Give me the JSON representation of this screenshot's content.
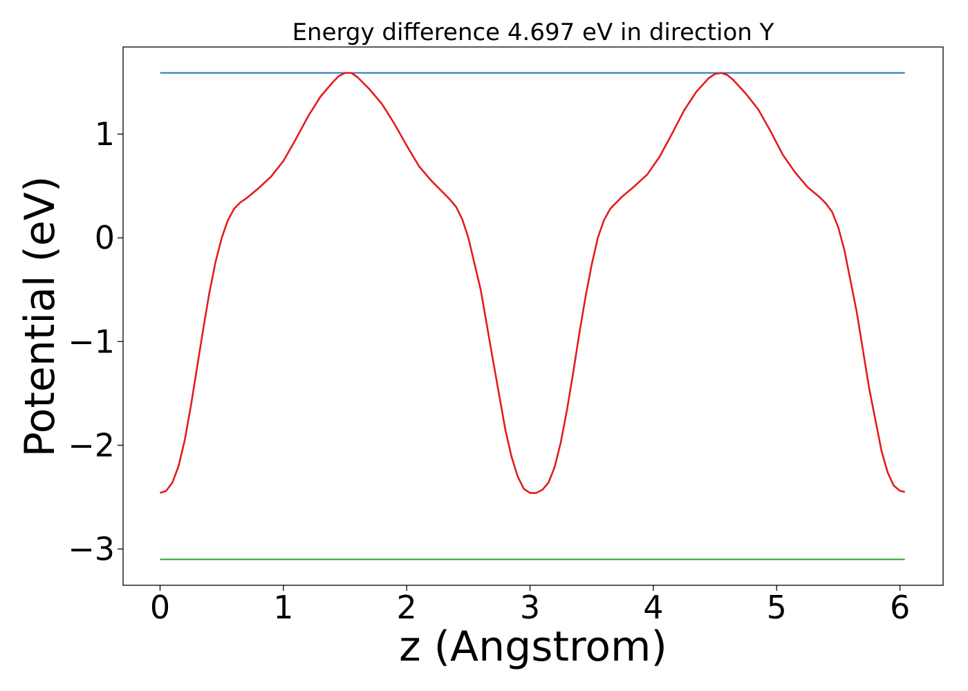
{
  "chart_data": {
    "type": "line",
    "title": "Energy difference 4.697 eV in direction Y",
    "xlabel": "z (Angstrom)",
    "ylabel": "Potential (eV)",
    "xlim": [
      -0.3,
      6.35
    ],
    "ylim": [
      -3.35,
      1.84
    ],
    "grid": false,
    "legend": "none",
    "xticks": [
      0,
      1,
      2,
      3,
      4,
      5,
      6
    ],
    "xtick_labels": [
      "0",
      "1",
      "2",
      "3",
      "4",
      "5",
      "6"
    ],
    "yticks": [
      1,
      0,
      -1,
      -2,
      -3
    ],
    "ytick_labels": [
      "1",
      "0",
      "−1",
      "−2",
      "−3"
    ],
    "series": [
      {
        "color": "#1f77b4",
        "x": [
          0,
          6.04
        ],
        "y": [
          1.59,
          1.59
        ]
      },
      {
        "color": "#2ca02c",
        "x": [
          0,
          6.04
        ],
        "y": [
          -3.1,
          -3.1
        ]
      },
      {
        "color": "#e31a1c",
        "x": [
          0,
          0.05,
          0.1,
          0.15,
          0.2,
          0.25,
          0.3,
          0.35,
          0.4,
          0.45,
          0.5,
          0.55,
          0.6,
          0.65,
          0.7,
          0.8,
          0.9,
          1.0,
          1.1,
          1.2,
          1.3,
          1.4,
          1.45,
          1.5,
          1.55,
          1.6,
          1.7,
          1.8,
          1.9,
          2.0,
          2.1,
          2.2,
          2.3,
          2.35,
          2.4,
          2.45,
          2.5,
          2.6,
          2.7,
          2.8,
          2.85,
          2.9,
          2.95,
          3.0,
          3.05,
          3.1,
          3.15,
          3.2,
          3.25,
          3.3,
          3.35,
          3.4,
          3.45,
          3.5,
          3.55,
          3.6,
          3.65,
          3.7,
          3.75,
          3.85,
          3.95,
          4.05,
          4.15,
          4.25,
          4.35,
          4.45,
          4.5,
          4.55,
          4.6,
          4.65,
          4.75,
          4.85,
          4.95,
          5.05,
          5.15,
          5.25,
          5.35,
          5.4,
          5.45,
          5.5,
          5.55,
          5.65,
          5.75,
          5.85,
          5.9,
          5.95,
          6.0,
          6.04
        ],
        "y": [
          -2.46,
          -2.44,
          -2.36,
          -2.2,
          -1.95,
          -1.62,
          -1.25,
          -0.88,
          -0.53,
          -0.23,
          0.0,
          0.17,
          0.28,
          0.34,
          0.38,
          0.48,
          0.59,
          0.74,
          0.95,
          1.17,
          1.36,
          1.5,
          1.56,
          1.59,
          1.59,
          1.55,
          1.43,
          1.29,
          1.1,
          0.89,
          0.69,
          0.55,
          0.43,
          0.37,
          0.3,
          0.18,
          0.0,
          -0.5,
          -1.18,
          -1.85,
          -2.11,
          -2.3,
          -2.42,
          -2.46,
          -2.46,
          -2.43,
          -2.36,
          -2.21,
          -1.97,
          -1.66,
          -1.3,
          -0.92,
          -0.57,
          -0.26,
          0.0,
          0.17,
          0.28,
          0.34,
          0.4,
          0.5,
          0.61,
          0.78,
          1.0,
          1.23,
          1.41,
          1.54,
          1.58,
          1.59,
          1.57,
          1.52,
          1.39,
          1.24,
          1.03,
          0.8,
          0.63,
          0.49,
          0.39,
          0.33,
          0.25,
          0.1,
          -0.12,
          -0.72,
          -1.45,
          -2.05,
          -2.26,
          -2.39,
          -2.44,
          -2.45
        ]
      }
    ]
  }
}
